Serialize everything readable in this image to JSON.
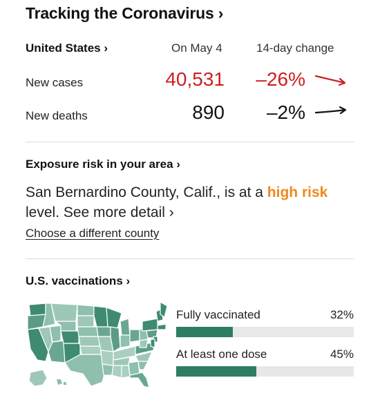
{
  "header": {
    "title": "Tracking the Coronavirus ›"
  },
  "stats": {
    "region_link": "United States ›",
    "date_col": "On May 4",
    "change_col": "14-day change",
    "rows": [
      {
        "label": "New cases",
        "value": "40,531",
        "change": "–26%",
        "trend": "down",
        "color": "#cc1f1f"
      },
      {
        "label": "New deaths",
        "value": "890",
        "change": "–2%",
        "trend": "flat",
        "color": "#121212"
      }
    ]
  },
  "exposure": {
    "title": "Exposure risk in your area ›",
    "text_before": "San Bernardino County, Calif., is at a ",
    "risk_label": "high risk",
    "text_after": " level. See more detail ›",
    "risk_color": "#f0891e",
    "change_county_link": "Choose a different county"
  },
  "vaccinations": {
    "title": "U.S. vaccinations ›",
    "bars": [
      {
        "label": "Fully vaccinated",
        "pct_text": "32%",
        "pct": 32
      },
      {
        "label": "At least one dose",
        "pct_text": "45%",
        "pct": 45
      }
    ],
    "bar_color": "#2e7d63"
  }
}
